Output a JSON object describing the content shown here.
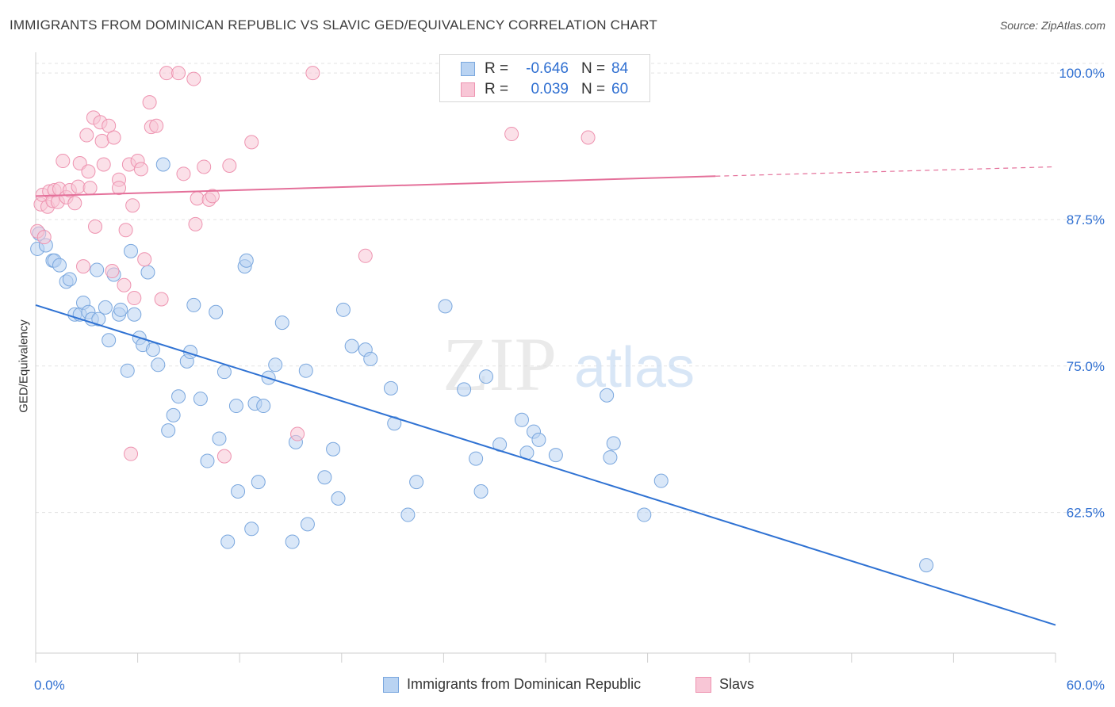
{
  "title": "IMMIGRANTS FROM DOMINICAN REPUBLIC VS SLAVIC GED/EQUIVALENCY CORRELATION CHART",
  "source": "Source: ZipAtlas.com",
  "watermark": {
    "zip": "ZIP",
    "atlas": "atlas"
  },
  "colors": {
    "blue_fill": "#b9d3f2",
    "blue_stroke": "#7aa7de",
    "blue_line": "#2f72d3",
    "pink_fill": "#f8c6d6",
    "pink_stroke": "#ee93b0",
    "pink_line": "#e4709a",
    "grid": "#e3e3e3",
    "tick_label": "#2f6fd1"
  },
  "stats": [
    {
      "r_label": "R =",
      "r_value": "-0.646",
      "n_label": "N =",
      "n_value": "84",
      "color": "blue"
    },
    {
      "r_label": "R =",
      "r_value": "0.039",
      "n_label": "N =",
      "n_value": "60",
      "color": "pink"
    }
  ],
  "legend": [
    {
      "label": "Immigrants from Dominican Republic",
      "color": "blue"
    },
    {
      "label": "Slavs",
      "color": "pink"
    }
  ],
  "chart_data": {
    "type": "scatter",
    "title": "IMMIGRANTS FROM DOMINICAN REPUBLIC VS SLAVIC GED/EQUIVALENCY CORRELATION CHART",
    "xlabel": "",
    "ylabel": "GED/Equivalency",
    "xlim": [
      0,
      60
    ],
    "ylim": [
      50.5,
      101.5
    ],
    "x_tick_labels": [
      "0.0%",
      "60.0%"
    ],
    "y_ticks": [
      62.5,
      75.0,
      87.5,
      100.0
    ],
    "y_tick_labels": [
      "62.5%",
      "75.0%",
      "87.5%",
      "100.0%"
    ],
    "grid": true,
    "legend_position": "bottom",
    "series": [
      {
        "name": "Immigrants from Dominican Republic",
        "color": "blue",
        "trend": {
          "x": [
            0,
            60
          ],
          "y": [
            80.2,
            52.9
          ],
          "dashed_from": null
        },
        "points": [
          [
            0.1,
            85.0
          ],
          [
            0.2,
            86.3
          ],
          [
            0.6,
            85.3
          ],
          [
            1.0,
            84.0
          ],
          [
            1.1,
            84.0
          ],
          [
            1.4,
            83.6
          ],
          [
            1.8,
            82.2
          ],
          [
            2.0,
            82.4
          ],
          [
            2.3,
            79.4
          ],
          [
            2.6,
            79.4
          ],
          [
            2.8,
            80.4
          ],
          [
            3.1,
            79.6
          ],
          [
            3.3,
            79.0
          ],
          [
            3.6,
            83.2
          ],
          [
            3.7,
            79.0
          ],
          [
            4.1,
            80.0
          ],
          [
            4.3,
            77.2
          ],
          [
            4.6,
            82.8
          ],
          [
            4.9,
            79.4
          ],
          [
            5.0,
            79.8
          ],
          [
            5.4,
            74.6
          ],
          [
            5.6,
            84.8
          ],
          [
            5.8,
            79.4
          ],
          [
            6.1,
            77.4
          ],
          [
            6.3,
            76.8
          ],
          [
            6.6,
            83.0
          ],
          [
            6.9,
            76.4
          ],
          [
            7.2,
            75.1
          ],
          [
            7.5,
            92.2
          ],
          [
            7.8,
            69.5
          ],
          [
            8.1,
            70.8
          ],
          [
            8.4,
            72.4
          ],
          [
            8.9,
            75.4
          ],
          [
            9.1,
            76.2
          ],
          [
            9.3,
            80.2
          ],
          [
            9.7,
            72.2
          ],
          [
            10.1,
            66.9
          ],
          [
            10.6,
            79.6
          ],
          [
            10.8,
            68.8
          ],
          [
            11.1,
            74.5
          ],
          [
            11.3,
            60.0
          ],
          [
            11.8,
            71.6
          ],
          [
            11.9,
            64.3
          ],
          [
            12.3,
            83.5
          ],
          [
            12.4,
            84.0
          ],
          [
            12.7,
            61.1
          ],
          [
            12.9,
            71.8
          ],
          [
            13.1,
            65.1
          ],
          [
            13.4,
            71.6
          ],
          [
            13.7,
            74.0
          ],
          [
            14.1,
            75.1
          ],
          [
            14.5,
            78.7
          ],
          [
            15.1,
            60.0
          ],
          [
            15.3,
            68.5
          ],
          [
            15.9,
            74.6
          ],
          [
            16.0,
            61.5
          ],
          [
            17.0,
            65.5
          ],
          [
            17.5,
            67.9
          ],
          [
            17.8,
            63.7
          ],
          [
            18.1,
            79.8
          ],
          [
            18.6,
            76.7
          ],
          [
            19.4,
            76.4
          ],
          [
            19.7,
            75.6
          ],
          [
            20.9,
            73.1
          ],
          [
            21.1,
            70.1
          ],
          [
            21.9,
            62.3
          ],
          [
            22.4,
            65.1
          ],
          [
            24.1,
            80.1
          ],
          [
            25.2,
            73.0
          ],
          [
            25.9,
            67.1
          ],
          [
            26.2,
            64.3
          ],
          [
            26.5,
            74.1
          ],
          [
            27.3,
            68.3
          ],
          [
            28.6,
            70.4
          ],
          [
            28.9,
            67.6
          ],
          [
            29.3,
            69.4
          ],
          [
            29.6,
            68.7
          ],
          [
            30.6,
            67.4
          ],
          [
            33.6,
            72.5
          ],
          [
            33.8,
            67.2
          ],
          [
            34.0,
            68.4
          ],
          [
            35.8,
            62.3
          ],
          [
            36.8,
            65.2
          ],
          [
            52.4,
            58.0
          ]
        ]
      },
      {
        "name": "Slavs",
        "color": "pink",
        "trend": {
          "x": [
            0,
            40,
            60
          ],
          "y": [
            89.5,
            91.2,
            92.0
          ],
          "dashed_from": 40
        },
        "points": [
          [
            0.1,
            86.5
          ],
          [
            0.3,
            88.8
          ],
          [
            0.4,
            89.6
          ],
          [
            0.5,
            86.0
          ],
          [
            0.7,
            88.6
          ],
          [
            0.8,
            89.9
          ],
          [
            1.0,
            89.1
          ],
          [
            1.1,
            90.0
          ],
          [
            1.3,
            89.0
          ],
          [
            1.4,
            90.1
          ],
          [
            1.6,
            92.5
          ],
          [
            1.8,
            89.4
          ],
          [
            2.0,
            90.0
          ],
          [
            2.3,
            88.9
          ],
          [
            2.5,
            90.3
          ],
          [
            2.6,
            92.3
          ],
          [
            2.8,
            83.5
          ],
          [
            3.0,
            94.7
          ],
          [
            3.1,
            91.6
          ],
          [
            3.2,
            90.2
          ],
          [
            3.4,
            96.2
          ],
          [
            3.5,
            86.9
          ],
          [
            3.8,
            95.8
          ],
          [
            3.9,
            94.2
          ],
          [
            4.0,
            92.2
          ],
          [
            4.3,
            95.5
          ],
          [
            4.5,
            83.1
          ],
          [
            4.6,
            94.5
          ],
          [
            4.9,
            90.9
          ],
          [
            4.9,
            90.2
          ],
          [
            5.2,
            81.9
          ],
          [
            5.3,
            86.6
          ],
          [
            5.5,
            92.2
          ],
          [
            5.7,
            88.7
          ],
          [
            5.8,
            80.8
          ],
          [
            5.6,
            67.5
          ],
          [
            6.0,
            92.5
          ],
          [
            6.2,
            91.8
          ],
          [
            6.4,
            84.1
          ],
          [
            6.7,
            97.5
          ],
          [
            6.8,
            95.4
          ],
          [
            7.1,
            95.5
          ],
          [
            7.4,
            80.7
          ],
          [
            7.7,
            100.0
          ],
          [
            8.4,
            100.0
          ],
          [
            8.7,
            91.4
          ],
          [
            9.3,
            99.5
          ],
          [
            9.4,
            87.1
          ],
          [
            9.5,
            89.3
          ],
          [
            9.9,
            92.0
          ],
          [
            10.2,
            89.2
          ],
          [
            10.4,
            89.5
          ],
          [
            11.1,
            67.3
          ],
          [
            11.4,
            92.1
          ],
          [
            12.7,
            94.1
          ],
          [
            15.4,
            69.2
          ],
          [
            16.3,
            100.0
          ],
          [
            19.4,
            84.4
          ],
          [
            28.0,
            94.8
          ],
          [
            32.5,
            94.5
          ]
        ]
      }
    ]
  }
}
